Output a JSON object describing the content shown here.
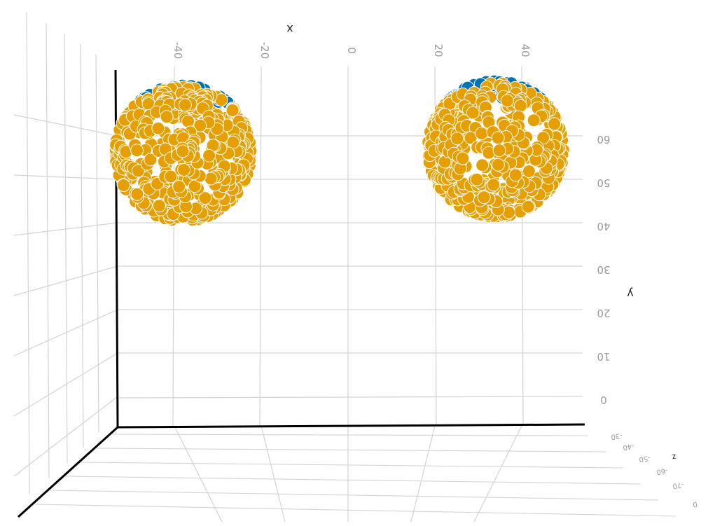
{
  "chart_data": {
    "type": "scatter",
    "view": "3d",
    "rotated": true,
    "axes": {
      "x": {
        "label": "x",
        "ticks": [
          "-40",
          "-20",
          "0",
          "20",
          "40"
        ],
        "range": [
          -54,
          56
        ]
      },
      "y": {
        "label": "y",
        "ticks": [
          "0",
          "10",
          "20",
          "30",
          "40",
          "50",
          "60"
        ],
        "range": [
          -6,
          76
        ]
      },
      "z": {
        "label": "z",
        "ticks": [
          "-30",
          "-40",
          "-50",
          "-60",
          "-70",
          "0"
        ]
      }
    },
    "grid": true,
    "legend": "none",
    "colors": {
      "back_points": "#0072b2",
      "front_points": "#e69f00",
      "point_edge": "#ffffff",
      "grid": "#d3d3d3",
      "axis_line": "#000000",
      "tick_text": "#9a9a9a"
    },
    "series": [
      {
        "shape": "sphere",
        "center": {
          "x": -38,
          "y": 56,
          "z": 0
        },
        "radius": 14
      },
      {
        "shape": "sphere",
        "center": {
          "x": 34,
          "y": 57,
          "z": 0
        },
        "radius": 14
      }
    ]
  }
}
